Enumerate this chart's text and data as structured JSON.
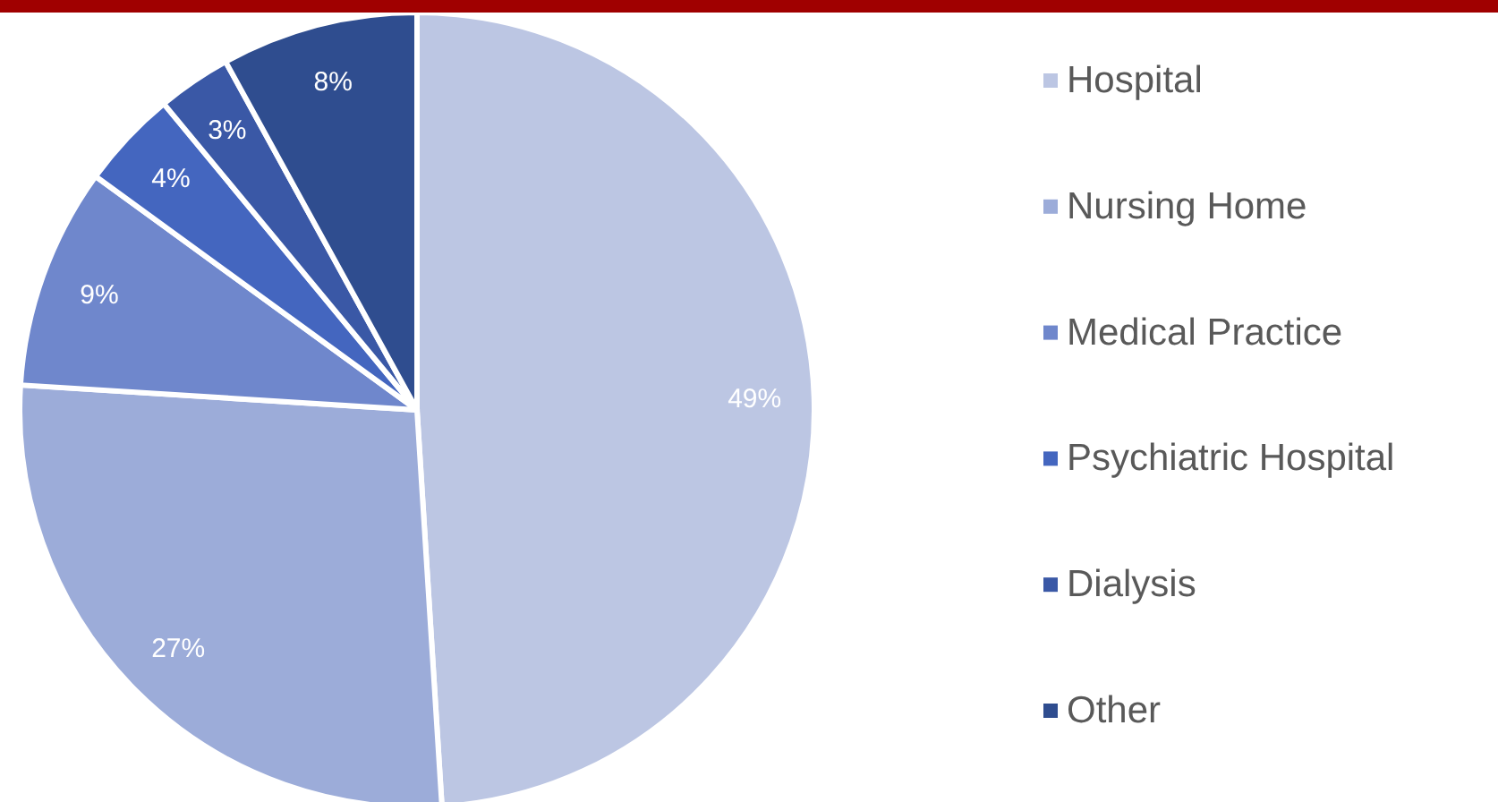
{
  "chart_data": {
    "type": "pie",
    "categories": [
      "Hospital",
      "Nursing Home",
      "Medical Practice",
      "Psychiatric Hospital",
      "Dialysis",
      "Other"
    ],
    "values": [
      49,
      27,
      9,
      4,
      3,
      8
    ],
    "value_labels": [
      "49%",
      "27%",
      "9%",
      "4%",
      "3%",
      "8%"
    ],
    "colors": [
      "#bcc6e3",
      "#9cacd9",
      "#6f87cc",
      "#4466bf",
      "#3a58a6",
      "#2f4d8f"
    ],
    "legend": "right"
  }
}
